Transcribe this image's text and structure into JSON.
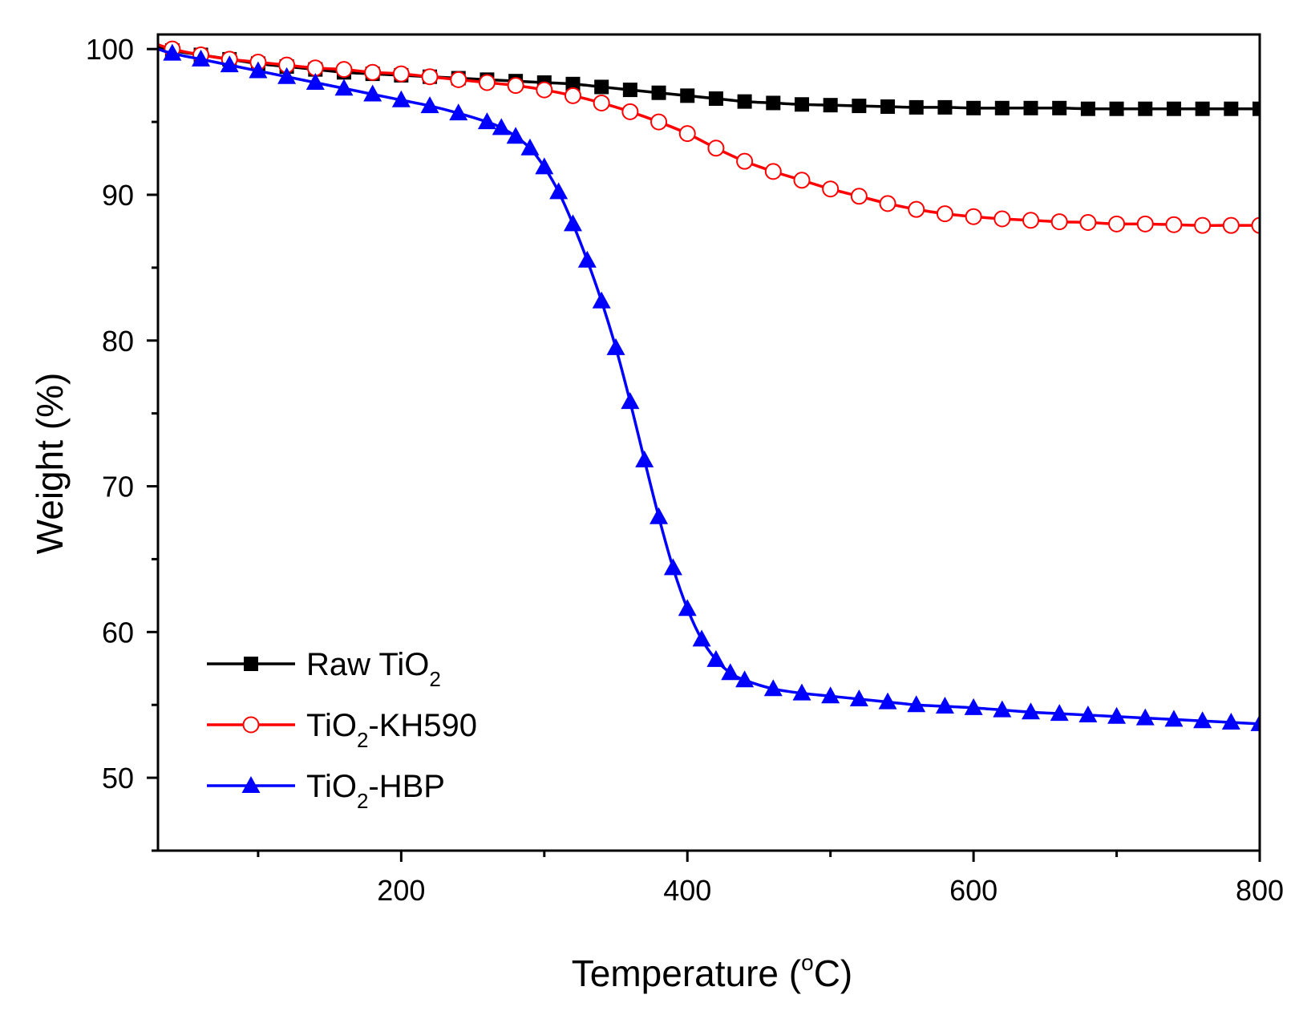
{
  "chart_data": {
    "type": "line",
    "title": "",
    "xlabel": "Temperature (°C)",
    "xlabel_parts": {
      "main": "Temperature (",
      "sup": "o",
      "unit": "C)"
    },
    "ylabel": "Weight (%)",
    "xlim": [
      30,
      800
    ],
    "ylim": [
      45,
      101
    ],
    "xticks": [
      200,
      400,
      600,
      800
    ],
    "xtick_labels": [
      "200",
      "400",
      "600",
      "800"
    ],
    "xminor": [
      100,
      300,
      500,
      700
    ],
    "yticks": [
      50,
      60,
      70,
      80,
      90,
      100
    ],
    "ytick_labels": [
      "50",
      "60",
      "70",
      "80",
      "90",
      "100"
    ],
    "yminor": [
      45,
      55,
      65,
      75,
      85,
      95
    ],
    "grid": false,
    "legend_position": "bottom-left",
    "series": [
      {
        "name": "Raw TiO2",
        "legend": {
          "base": "Raw TiO",
          "sub": "2",
          "rest": ""
        },
        "color": "#000000",
        "marker": "square-filled",
        "x": [
          30,
          40,
          60,
          80,
          100,
          120,
          140,
          160,
          180,
          200,
          220,
          240,
          260,
          280,
          300,
          320,
          340,
          360,
          380,
          400,
          420,
          440,
          460,
          480,
          500,
          520,
          540,
          560,
          580,
          600,
          620,
          640,
          660,
          680,
          700,
          720,
          740,
          760,
          780,
          800
        ],
        "y": [
          100.2,
          99.9,
          99.6,
          99.3,
          99.0,
          98.8,
          98.6,
          98.4,
          98.3,
          98.2,
          98.1,
          98.0,
          97.9,
          97.8,
          97.7,
          97.6,
          97.4,
          97.2,
          97.0,
          96.8,
          96.6,
          96.4,
          96.3,
          96.2,
          96.15,
          96.1,
          96.05,
          96.0,
          96.0,
          95.95,
          95.95,
          95.95,
          95.95,
          95.9,
          95.9,
          95.9,
          95.9,
          95.9,
          95.9,
          95.9
        ]
      },
      {
        "name": "TiO2-KH590",
        "legend": {
          "base": "TiO",
          "sub": "2",
          "rest": "-KH590"
        },
        "color": "#ff0000",
        "marker": "circle-open",
        "x": [
          30,
          40,
          60,
          80,
          100,
          120,
          140,
          160,
          180,
          200,
          220,
          240,
          260,
          280,
          300,
          320,
          340,
          360,
          380,
          400,
          420,
          440,
          460,
          480,
          500,
          520,
          540,
          560,
          580,
          600,
          620,
          640,
          660,
          680,
          700,
          720,
          740,
          760,
          780,
          800
        ],
        "y": [
          100.3,
          100.0,
          99.6,
          99.3,
          99.1,
          98.9,
          98.7,
          98.6,
          98.4,
          98.3,
          98.1,
          97.9,
          97.7,
          97.5,
          97.2,
          96.8,
          96.3,
          95.7,
          95.0,
          94.2,
          93.2,
          92.3,
          91.6,
          91.0,
          90.4,
          89.9,
          89.4,
          89.0,
          88.7,
          88.5,
          88.35,
          88.25,
          88.15,
          88.1,
          88.0,
          88.0,
          87.95,
          87.9,
          87.9,
          87.9
        ]
      },
      {
        "name": "TiO2-HBP",
        "legend": {
          "base": "TiO",
          "sub": "2",
          "rest": "-HBP"
        },
        "color": "#0000ff",
        "marker": "triangle-filled",
        "x": [
          30,
          40,
          60,
          80,
          100,
          120,
          140,
          160,
          180,
          200,
          220,
          240,
          260,
          270,
          280,
          290,
          300,
          310,
          320,
          330,
          340,
          350,
          360,
          370,
          380,
          390,
          400,
          410,
          420,
          430,
          440,
          460,
          480,
          500,
          520,
          540,
          560,
          580,
          600,
          620,
          640,
          660,
          680,
          700,
          720,
          740,
          760,
          780,
          800
        ],
        "y": [
          100.0,
          99.7,
          99.3,
          98.9,
          98.5,
          98.1,
          97.7,
          97.3,
          96.9,
          96.5,
          96.1,
          95.6,
          95.0,
          94.6,
          94.0,
          93.2,
          91.9,
          90.2,
          88.0,
          85.5,
          82.7,
          79.5,
          75.8,
          71.8,
          67.9,
          64.4,
          61.6,
          59.5,
          58.1,
          57.2,
          56.7,
          56.1,
          55.8,
          55.6,
          55.4,
          55.2,
          55.0,
          54.9,
          54.8,
          54.65,
          54.5,
          54.4,
          54.3,
          54.2,
          54.1,
          54.0,
          53.9,
          53.8,
          53.7
        ]
      }
    ]
  }
}
